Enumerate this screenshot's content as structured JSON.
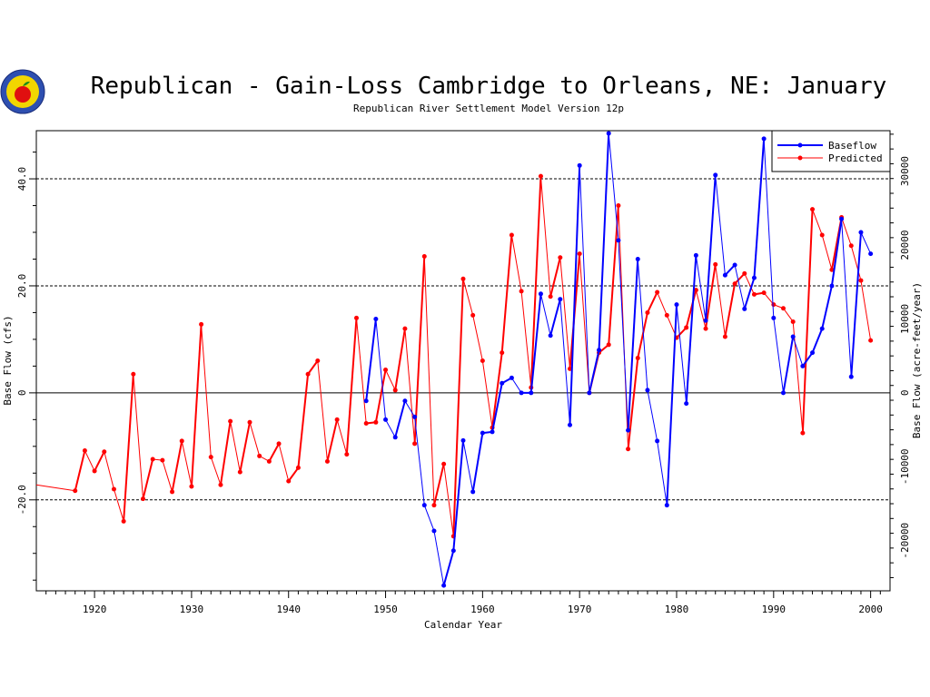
{
  "chart_data": {
    "type": "line",
    "title": "Republican - Gain-Loss Cambridge to Orleans, NE: January",
    "subtitle": "Republican River Settlement Model Version 12p",
    "xlabel": "Calendar Year",
    "ylabel": "Base Flow (cfs)",
    "ylabel_right": "Base Flow (acre-feet/year)",
    "xlim": [
      1914,
      2002
    ],
    "ylim": [
      -37,
      49
    ],
    "x_ticks": [
      "1920",
      "1930",
      "1940",
      "1950",
      "1960",
      "1970",
      "1980",
      "1990",
      "2000"
    ],
    "y_ticks_left": [
      "-20.0",
      "0",
      "20.0",
      "40.0"
    ],
    "y_ticks_right": [
      "-20000",
      "-10000",
      "0",
      "10000",
      "20000",
      "30000"
    ],
    "grid_y": [
      -20,
      20,
      40
    ],
    "legend_position": "top-right",
    "series": [
      {
        "name": "Baseflow",
        "color": "#0000ff",
        "x": [
          1948,
          1949,
          1950,
          1951,
          1952,
          1953,
          1954,
          1955,
          1956,
          1957,
          1958,
          1959,
          1960,
          1961,
          1962,
          1963,
          1964,
          1965,
          1966,
          1967,
          1968,
          1969,
          1970,
          1971,
          1972,
          1973,
          1974,
          1975,
          1976,
          1977,
          1978,
          1979,
          1980,
          1981,
          1982,
          1983,
          1984,
          1985,
          1986,
          1987,
          1988,
          1989,
          1990,
          1991,
          1992,
          1993,
          1994,
          1995,
          1996,
          1997,
          1998,
          1999,
          2000
        ],
        "y": [
          -1.5,
          13.8,
          -5,
          -8.3,
          -1.5,
          -4.5,
          -21,
          -25.8,
          -36,
          -29.5,
          -8.9,
          -18.5,
          -7.5,
          -7.3,
          1.8,
          2.8,
          0,
          0,
          18.5,
          10.7,
          17.5,
          -6,
          42.5,
          0,
          8,
          48.5,
          28.5,
          -7,
          25,
          0.5,
          -9,
          -21,
          16.5,
          -2,
          25.7,
          13.5,
          40.7,
          22,
          23.9,
          15.7,
          21.5,
          47.5,
          14,
          0,
          10.5,
          5,
          7.5,
          12,
          20,
          32.5,
          3,
          30,
          26
        ]
      },
      {
        "name": "Predicted",
        "color": "#ff0000",
        "x": [
          1914,
          1918,
          1919,
          1920,
          1921,
          1922,
          1923,
          1924,
          1925,
          1926,
          1927,
          1928,
          1929,
          1930,
          1931,
          1932,
          1933,
          1934,
          1935,
          1936,
          1937,
          1938,
          1939,
          1940,
          1941,
          1942,
          1943,
          1944,
          1945,
          1946,
          1947,
          1948,
          1949,
          1950,
          1951,
          1952,
          1953,
          1954,
          1955,
          1956,
          1957,
          1958,
          1959,
          1960,
          1961,
          1962,
          1963,
          1964,
          1965,
          1966,
          1967,
          1968,
          1969,
          1970,
          1971,
          1972,
          1973,
          1974,
          1975,
          1976,
          1977,
          1978,
          1979,
          1980,
          1981,
          1982,
          1983,
          1984,
          1985,
          1986,
          1987,
          1988,
          1989,
          1990,
          1991,
          1992,
          1993,
          1994,
          1995,
          1996,
          1997,
          1998,
          1999,
          2000
        ],
        "y": [
          -17.2,
          -18.3,
          -10.8,
          -14.6,
          -11,
          -18,
          -24,
          3.5,
          -19.8,
          -12.4,
          -12.6,
          -18.5,
          -9,
          -17.5,
          12.8,
          -12,
          -17.2,
          -5.3,
          -14.8,
          -5.5,
          -11.8,
          -12.8,
          -9.5,
          -16.5,
          -14,
          3.5,
          6,
          -12.8,
          -5,
          -11.5,
          14,
          -5.7,
          -5.5,
          4.3,
          0.5,
          12,
          -9.5,
          25.5,
          -21,
          -13.3,
          -26.8,
          21.3,
          14.5,
          6,
          -6.5,
          7.5,
          29.5,
          19,
          1,
          40.5,
          18,
          25.3,
          4.5,
          26,
          0,
          7.5,
          9,
          35,
          -10.5,
          6.5,
          15,
          18.8,
          14.5,
          10.3,
          12.2,
          19.2,
          12,
          24,
          10.5,
          20.4,
          22.3,
          18.4,
          18.7,
          16.5,
          15.8,
          13.3,
          -7.5,
          34.3,
          29.5,
          23,
          32.8,
          27.5,
          21,
          9.8
        ]
      }
    ]
  }
}
